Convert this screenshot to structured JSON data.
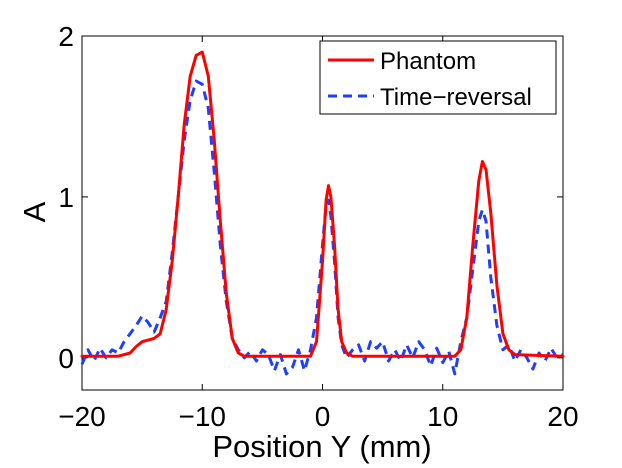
{
  "chart_data": {
    "type": "line",
    "title": "",
    "xlabel": "Position Y (mm)",
    "ylabel": "A",
    "xlim": [
      -20,
      20
    ],
    "ylim": [
      -0.2,
      2.0
    ],
    "xticks": [
      -20,
      -10,
      0,
      10,
      20
    ],
    "xtick_labels": [
      "−20",
      "−10",
      "0",
      "10",
      "20"
    ],
    "yticks": [
      0,
      1,
      2
    ],
    "ytick_labels": [
      "0",
      "1",
      "2"
    ],
    "grid": false,
    "legend_position": "top-right",
    "series": [
      {
        "name": "Phantom",
        "color": "#ff0000",
        "style": "solid",
        "x": [
          -20,
          -17,
          -16,
          -15.5,
          -15,
          -14.5,
          -14,
          -13.5,
          -13,
          -12.5,
          -12,
          -11.5,
          -11,
          -10.5,
          -10,
          -9.5,
          -9,
          -8.5,
          -8,
          -7.5,
          -7,
          -6.5,
          -6,
          -1,
          -0.5,
          0,
          0.3,
          0.5,
          0.7,
          1,
          1.3,
          1.6,
          2,
          2.5,
          11,
          11.5,
          12,
          12.5,
          13,
          13.3,
          13.6,
          14,
          14.5,
          15,
          15.5,
          16,
          20
        ],
        "y": [
          0.01,
          0.01,
          0.03,
          0.07,
          0.1,
          0.11,
          0.12,
          0.15,
          0.3,
          0.6,
          1.0,
          1.45,
          1.75,
          1.88,
          1.9,
          1.75,
          1.35,
          0.85,
          0.4,
          0.12,
          0.03,
          0.01,
          0.01,
          0.01,
          0.1,
          0.6,
          0.98,
          1.07,
          1.0,
          0.7,
          0.3,
          0.1,
          0.03,
          0.01,
          0.01,
          0.05,
          0.25,
          0.7,
          1.1,
          1.22,
          1.17,
          0.9,
          0.45,
          0.15,
          0.05,
          0.02,
          0.01
        ]
      },
      {
        "name": "Time−reversal",
        "color": "#1f3fff",
        "style": "dashed",
        "x": [
          -20,
          -19.5,
          -19,
          -18.5,
          -18,
          -17.5,
          -17,
          -16.5,
          -16,
          -15.5,
          -15,
          -14.5,
          -14,
          -13.5,
          -13,
          -12.5,
          -12,
          -11.5,
          -11,
          -10.5,
          -10,
          -9.5,
          -9,
          -8.5,
          -8,
          -7.5,
          -7,
          -6.5,
          -6,
          -5.5,
          -5,
          -4.5,
          -4,
          -3.5,
          -3,
          -2.5,
          -2,
          -1.5,
          -1,
          -0.5,
          0,
          0.3,
          0.5,
          0.7,
          1,
          1.3,
          1.6,
          2,
          2.5,
          3,
          3.5,
          4,
          4.5,
          5,
          5.5,
          6,
          6.5,
          7,
          7.5,
          8,
          8.5,
          9,
          9.5,
          10,
          10.5,
          11,
          11.5,
          12,
          12.5,
          13,
          13.3,
          13.6,
          14,
          14.5,
          15,
          15.5,
          16,
          16.5,
          17,
          17.5,
          18,
          18.5,
          19,
          19.5,
          20
        ],
        "y": [
          -0.04,
          0.05,
          -0.02,
          0.06,
          0.0,
          0.05,
          0.03,
          0.1,
          0.15,
          0.2,
          0.26,
          0.22,
          0.16,
          0.25,
          0.35,
          0.65,
          1.0,
          1.35,
          1.6,
          1.72,
          1.7,
          1.55,
          1.15,
          0.7,
          0.35,
          0.12,
          0.05,
          0.0,
          0.04,
          -0.02,
          0.05,
          0.02,
          -0.08,
          0.02,
          -0.1,
          -0.06,
          0.05,
          -0.08,
          0.05,
          0.25,
          0.7,
          0.95,
          0.98,
          0.88,
          0.6,
          0.25,
          0.08,
          0.0,
          0.05,
          0.08,
          -0.02,
          0.1,
          0.06,
          0.1,
          -0.02,
          0.05,
          -0.02,
          0.08,
          0.0,
          0.1,
          0.05,
          -0.05,
          0.06,
          -0.03,
          0.04,
          -0.1,
          0.1,
          0.25,
          0.55,
          0.85,
          0.92,
          0.85,
          0.5,
          0.2,
          0.05,
          0.08,
          -0.02,
          0.05,
          0.0,
          -0.07,
          0.03,
          -0.02,
          0.06,
          0.0,
          0.02
        ]
      }
    ]
  }
}
